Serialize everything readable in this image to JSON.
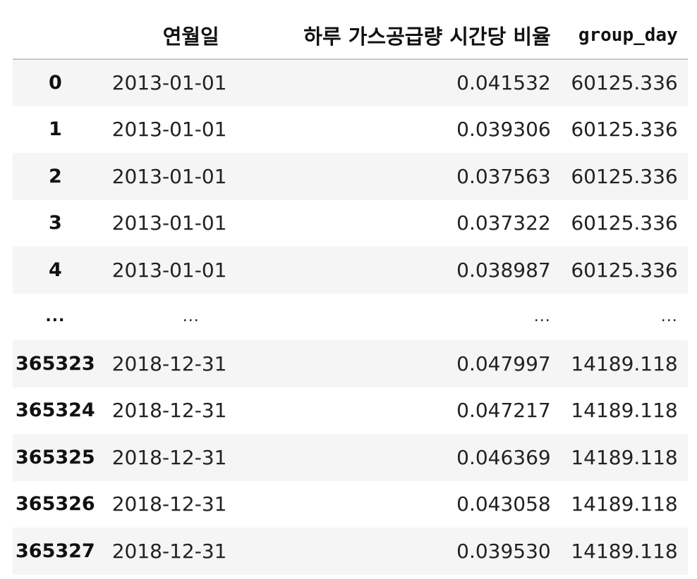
{
  "table": {
    "columns": {
      "index": "",
      "date": "연월일",
      "ratio": "하루 가스공급량 시간당 비율",
      "group": "group_day"
    },
    "rows": [
      {
        "index": "0",
        "date": "2013-01-01",
        "ratio": "0.041532",
        "group": "60125.336"
      },
      {
        "index": "1",
        "date": "2013-01-01",
        "ratio": "0.039306",
        "group": "60125.336"
      },
      {
        "index": "2",
        "date": "2013-01-01",
        "ratio": "0.037563",
        "group": "60125.336"
      },
      {
        "index": "3",
        "date": "2013-01-01",
        "ratio": "0.037322",
        "group": "60125.336"
      },
      {
        "index": "4",
        "date": "2013-01-01",
        "ratio": "0.038987",
        "group": "60125.336"
      },
      {
        "index": "...",
        "date": "...",
        "ratio": "...",
        "group": "..."
      },
      {
        "index": "365323",
        "date": "2018-12-31",
        "ratio": "0.047997",
        "group": "14189.118"
      },
      {
        "index": "365324",
        "date": "2018-12-31",
        "ratio": "0.047217",
        "group": "14189.118"
      },
      {
        "index": "365325",
        "date": "2018-12-31",
        "ratio": "0.046369",
        "group": "14189.118"
      },
      {
        "index": "365326",
        "date": "2018-12-31",
        "ratio": "0.043058",
        "group": "14189.118"
      },
      {
        "index": "365327",
        "date": "2018-12-31",
        "ratio": "0.039530",
        "group": "14189.118"
      }
    ]
  },
  "colors": {
    "stripe": "#f5f5f5",
    "header_rule": "#c8c8c8",
    "text": "#1a1a1a"
  }
}
